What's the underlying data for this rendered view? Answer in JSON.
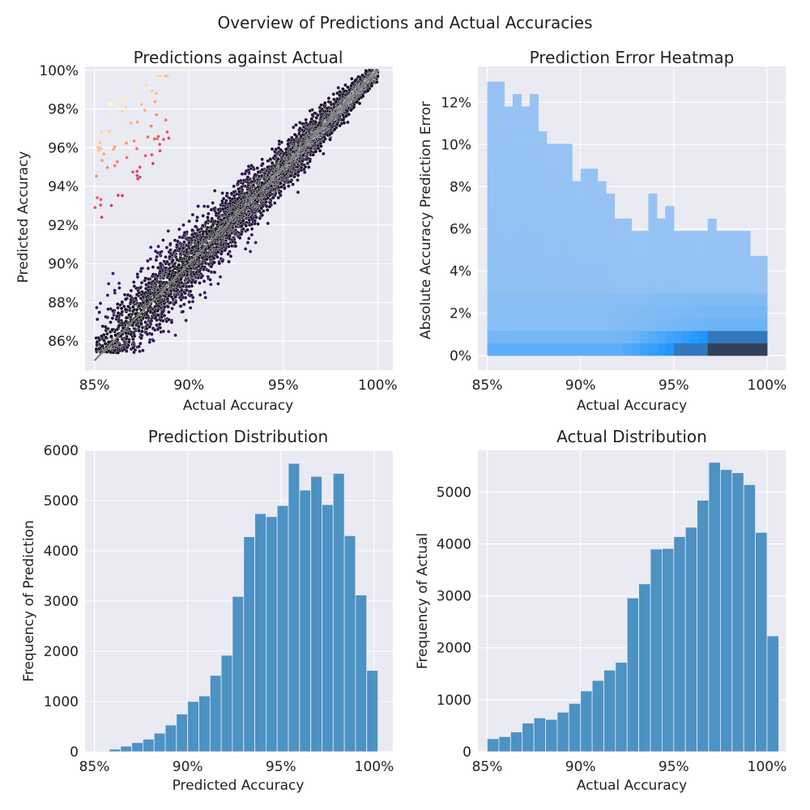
{
  "figure": {
    "title": "Overview of Predictions and Actual Accuracies"
  },
  "chart_data": [
    {
      "type": "scatter",
      "title": "Predictions against Actual",
      "xlabel": "Actual Accuracy",
      "ylabel": "Predicted Accuracy",
      "xlim": [
        84.5,
        100.8
      ],
      "ylim": [
        84.5,
        100.2
      ],
      "xticks": [
        85,
        90,
        95,
        100
      ],
      "xtick_labels": [
        "85%",
        "90%",
        "95%",
        "100%"
      ],
      "yticks": [
        86,
        88,
        90,
        92,
        94,
        96,
        98,
        100
      ],
      "ytick_labels": [
        "86%",
        "88%",
        "90%",
        "92%",
        "94%",
        "96%",
        "98%",
        "100%"
      ],
      "colormap": "magma (color = absolute prediction error)",
      "reference_line": {
        "x": [
          85,
          100
        ],
        "y": [
          85,
          100
        ],
        "color": "#808080"
      },
      "grid": true
    },
    {
      "type": "heatmap",
      "title": "Prediction Error Heatmap",
      "xlabel": "Actual Accuracy",
      "ylabel": "Absolute Accuracy Prediction Error",
      "xlim": [
        84.5,
        101
      ],
      "ylim": [
        -0.7,
        13.7
      ],
      "xticks": [
        85,
        90,
        95,
        100
      ],
      "xtick_labels": [
        "85%",
        "90%",
        "95%",
        "100%"
      ],
      "yticks": [
        0,
        2,
        4,
        6,
        8,
        10,
        12
      ],
      "ytick_labels": [
        "0%",
        "2%",
        "4%",
        "6%",
        "8%",
        "10%",
        "12%"
      ],
      "x_bins": [
        85,
        85.625,
        86.25,
        86.875,
        87.5,
        88.125,
        88.75,
        89.375,
        90,
        90.625,
        91.25,
        91.875,
        92.5,
        93.125,
        93.75,
        94.375,
        95,
        95.625,
        96.25,
        96.875,
        97.5,
        98.125,
        98.75,
        99.375,
        100
      ],
      "y_bin_width": 0.59,
      "bin_tops": [
        12.98,
        12.98,
        11.8,
        12.39,
        11.8,
        12.39,
        10.62,
        10.03,
        10.03,
        10.03,
        8.26,
        8.85,
        8.85,
        8.26,
        7.67,
        6.49,
        6.49,
        5.9,
        5.9,
        7.67,
        6.49,
        7.08,
        5.9,
        5.9,
        5.9,
        5.9,
        6.49,
        5.9,
        5.9,
        5.9,
        5.9,
        4.72,
        4.72
      ],
      "hot_region": "darkest at 97.5–100% actual, 0–0.6% error; bright blue at 93–98% actual, 0–1.2% error",
      "color": "#1e90ff",
      "grid": true
    },
    {
      "type": "bar",
      "title": "Prediction Distribution",
      "xlabel": "Predicted Accuracy",
      "ylabel": "Frequency of Prediction",
      "xlim": [
        84.5,
        101
      ],
      "ylim": [
        0,
        6000
      ],
      "xticks": [
        85,
        90,
        95,
        100
      ],
      "xtick_labels": [
        "85%",
        "90%",
        "95%",
        "100%"
      ],
      "yticks": [
        0,
        1000,
        2000,
        3000,
        4000,
        5000,
        6000
      ],
      "ytick_labels": [
        "0",
        "1000",
        "2000",
        "3000",
        "4000",
        "5000",
        "6000"
      ],
      "bin_start": 85.2,
      "bin_width": 0.6,
      "values": [
        10,
        50,
        110,
        180,
        250,
        370,
        530,
        750,
        1000,
        1110,
        1520,
        1920,
        3090,
        4280,
        4740,
        4680,
        4900,
        5740,
        5210,
        5480,
        4920,
        5540,
        4300,
        3120,
        1620
      ],
      "color": "#4c92c3",
      "grid": true
    },
    {
      "type": "bar",
      "title": "Actual Distribution",
      "xlabel": "Actual Accuracy",
      "ylabel": "Frequency of Actual",
      "xlim": [
        84.5,
        101
      ],
      "ylim": [
        0,
        5800
      ],
      "xticks": [
        85,
        90,
        95,
        100
      ],
      "xtick_labels": [
        "85%",
        "90%",
        "95%",
        "100%"
      ],
      "yticks": [
        0,
        1000,
        2000,
        3000,
        4000,
        5000
      ],
      "ytick_labels": [
        "0",
        "1000",
        "2000",
        "3000",
        "4000",
        "5000"
      ],
      "bin_start": 85,
      "bin_width": 0.625,
      "values": [
        250,
        290,
        380,
        550,
        650,
        620,
        760,
        930,
        1170,
        1370,
        1570,
        1720,
        2960,
        3230,
        3900,
        3910,
        4140,
        4320,
        4840,
        5570,
        5430,
        5370,
        5140,
        4220,
        2230
      ],
      "color": "#4c92c3",
      "grid": true
    }
  ]
}
